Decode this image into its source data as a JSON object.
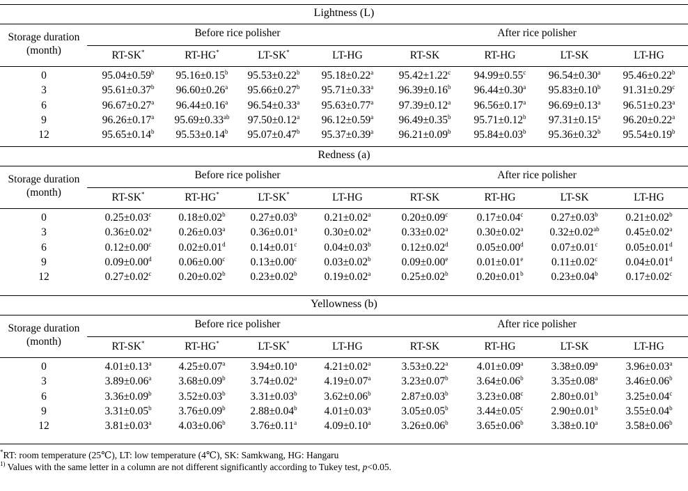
{
  "columns": [
    "RT-SK",
    "RT-HG",
    "LT-SK",
    "LT-HG",
    "RT-SK",
    "RT-HG",
    "LT-SK",
    "LT-HG"
  ],
  "column_marks": [
    "*",
    "*",
    "*",
    "",
    "",
    "",
    "",
    ""
  ],
  "group_before": "Before rice polisher",
  "group_after": "After rice polisher",
  "row_header_line1": "Storage duration",
  "row_header_line2": "(month)",
  "sections": [
    {
      "title": "Lightness (L)",
      "rows": [
        {
          "month": "0",
          "cells": [
            [
              "95.04±0.59",
              "b"
            ],
            [
              "95.16±0.15",
              "b"
            ],
            [
              "95.53±0.22",
              "b"
            ],
            [
              "95.18±0.22",
              "a"
            ],
            [
              "95.42±1.22",
              "c"
            ],
            [
              "94.99±0.55",
              "c"
            ],
            [
              "96.54±0.30",
              "a"
            ],
            [
              "95.46±0.22",
              "b"
            ]
          ]
        },
        {
          "month": "3",
          "cells": [
            [
              "95.61±0.37",
              "b"
            ],
            [
              "96.60±0.26",
              "a"
            ],
            [
              "95.66±0.27",
              "b"
            ],
            [
              "95.71±0.33",
              "a"
            ],
            [
              "96.39±0.16",
              "b"
            ],
            [
              "96.44±0.30",
              "a"
            ],
            [
              "95.83±0.10",
              "b"
            ],
            [
              "91.31±0.29",
              "c"
            ]
          ]
        },
        {
          "month": "6",
          "cells": [
            [
              "96.67±0.27",
              "a"
            ],
            [
              "96.44±0.16",
              "a"
            ],
            [
              "96.54±0.33",
              "a"
            ],
            [
              "95.63±0.77",
              "a"
            ],
            [
              "97.39±0.12",
              "a"
            ],
            [
              "96.56±0.17",
              "a"
            ],
            [
              "96.69±0.13",
              "a"
            ],
            [
              "96.51±0.23",
              "a"
            ]
          ]
        },
        {
          "month": "9",
          "cells": [
            [
              "96.26±0.17",
              "a"
            ],
            [
              "95.69±0.33",
              "ab"
            ],
            [
              "97.50±0.12",
              "a"
            ],
            [
              "96.12±0.59",
              "a"
            ],
            [
              "96.49±0.35",
              "b"
            ],
            [
              "95.71±0.12",
              "b"
            ],
            [
              "97.31±0.15",
              "a"
            ],
            [
              "96.20±0.22",
              "a"
            ]
          ]
        },
        {
          "month": "12",
          "cells": [
            [
              "95.65±0.14",
              "b"
            ],
            [
              "95.53±0.14",
              "b"
            ],
            [
              "95.07±0.47",
              "b"
            ],
            [
              "95.37±0.39",
              "a"
            ],
            [
              "96.21±0.09",
              "b"
            ],
            [
              "95.84±0.03",
              "b"
            ],
            [
              "95.36±0.32",
              "b"
            ],
            [
              "95.54±0.19",
              "b"
            ]
          ]
        }
      ]
    },
    {
      "title": "Redness (a)",
      "rows": [
        {
          "month": "0",
          "cells": [
            [
              "0.25±0.03",
              "c"
            ],
            [
              "0.18±0.02",
              "b"
            ],
            [
              "0.27±0.03",
              "b"
            ],
            [
              "0.21±0.02",
              "a"
            ],
            [
              "0.20±0.09",
              "c"
            ],
            [
              "0.17±0.04",
              "c"
            ],
            [
              "0.27±0.03",
              "b"
            ],
            [
              "0.21±0.02",
              "b"
            ]
          ]
        },
        {
          "month": "3",
          "cells": [
            [
              "0.36±0.02",
              "a"
            ],
            [
              "0.26±0.03",
              "a"
            ],
            [
              "0.36±0.01",
              "a"
            ],
            [
              "0.30±0.02",
              "a"
            ],
            [
              "0.33±0.02",
              "a"
            ],
            [
              "0.30±0.02",
              "a"
            ],
            [
              "0.32±0.02",
              "ab"
            ],
            [
              "0.45±0.02",
              "a"
            ]
          ]
        },
        {
          "month": "6",
          "cells": [
            [
              "0.12±0.00",
              "c"
            ],
            [
              "0.02±0.01",
              "d"
            ],
            [
              "0.14±0.01",
              "c"
            ],
            [
              "0.04±0.03",
              "b"
            ],
            [
              "0.12±0.02",
              "d"
            ],
            [
              "0.05±0.00",
              "d"
            ],
            [
              "0.07±0.01",
              "c"
            ],
            [
              "0.05±0.01",
              "d"
            ]
          ]
        },
        {
          "month": "9",
          "cells": [
            [
              "0.09±0.00",
              "d"
            ],
            [
              "0.06±0.00",
              "c"
            ],
            [
              "0.13±0.00",
              "c"
            ],
            [
              "0.03±0.02",
              "b"
            ],
            [
              "0.09±0.00",
              "e"
            ],
            [
              "0.01±0.01",
              "e"
            ],
            [
              "0.11±0.02",
              "c"
            ],
            [
              "0.04±0.01",
              "d"
            ]
          ]
        },
        {
          "month": "12",
          "cells": [
            [
              "0.27±0.02",
              "c"
            ],
            [
              "0.20±0.02",
              "b"
            ],
            [
              "0.23±0.02",
              "b"
            ],
            [
              "0.19±0.02",
              "a"
            ],
            [
              "0.25±0.02",
              "b"
            ],
            [
              "0.20±0.01",
              "b"
            ],
            [
              "0.23±0.04",
              "b"
            ],
            [
              "0.17±0.02",
              "c"
            ]
          ]
        }
      ]
    },
    {
      "title": "Yellowness (b)",
      "rows": [
        {
          "month": "0",
          "cells": [
            [
              "4.01±0.13",
              "a"
            ],
            [
              "4.25±0.07",
              "a"
            ],
            [
              "3.94±0.10",
              "a"
            ],
            [
              "4.21±0.02",
              "a"
            ],
            [
              "3.53±0.22",
              "a"
            ],
            [
              "4.01±0.09",
              "a"
            ],
            [
              "3.38±0.09",
              "a"
            ],
            [
              "3.96±0.03",
              "a"
            ]
          ]
        },
        {
          "month": "3",
          "cells": [
            [
              "3.89±0.06",
              "a"
            ],
            [
              "3.68±0.09",
              "b"
            ],
            [
              "3.74±0.02",
              "a"
            ],
            [
              "4.19±0.07",
              "a"
            ],
            [
              "3.23±0.07",
              "b"
            ],
            [
              "3.64±0.06",
              "b"
            ],
            [
              "3.35±0.08",
              "a"
            ],
            [
              "3.46±0.06",
              "b"
            ]
          ]
        },
        {
          "month": "6",
          "cells": [
            [
              "3.36±0.09",
              "b"
            ],
            [
              "3.52±0.03",
              "b"
            ],
            [
              "3.31±0.03",
              "b"
            ],
            [
              "3.62±0.06",
              "b"
            ],
            [
              "2.87±0.03",
              "b"
            ],
            [
              "3.23±0.08",
              "c"
            ],
            [
              "2.80±0.01",
              "b"
            ],
            [
              "3.25±0.04",
              "c"
            ]
          ]
        },
        {
          "month": "9",
          "cells": [
            [
              "3.31±0.05",
              "b"
            ],
            [
              "3.76±0.09",
              "b"
            ],
            [
              "2.88±0.04",
              "b"
            ],
            [
              "4.01±0.03",
              "a"
            ],
            [
              "3.05±0.05",
              "b"
            ],
            [
              "3.44±0.05",
              "c"
            ],
            [
              "2.90±0.01",
              "b"
            ],
            [
              "3.55±0.04",
              "b"
            ]
          ]
        },
        {
          "month": "12",
          "cells": [
            [
              "3.81±0.03",
              "a"
            ],
            [
              "4.03±0.06",
              "b"
            ],
            [
              "3.76±0.11",
              "a"
            ],
            [
              "4.09±0.10",
              "a"
            ],
            [
              "3.26±0.06",
              "b"
            ],
            [
              "3.65±0.06",
              "b"
            ],
            [
              "3.38±0.10",
              "a"
            ],
            [
              "3.58±0.06",
              "b"
            ]
          ]
        }
      ]
    }
  ],
  "footnotes": {
    "note1_mark": "*",
    "note1_text": "RT: room temperature (25℃), LT: low temperature (4℃), SK: Samkwang, HG: Hangaru",
    "note2_mark": "1)",
    "note2_pre": " Values with the same letter in a column are not different significantly according to Tukey test, ",
    "note2_italic": "p",
    "note2_post": "<0.05."
  }
}
